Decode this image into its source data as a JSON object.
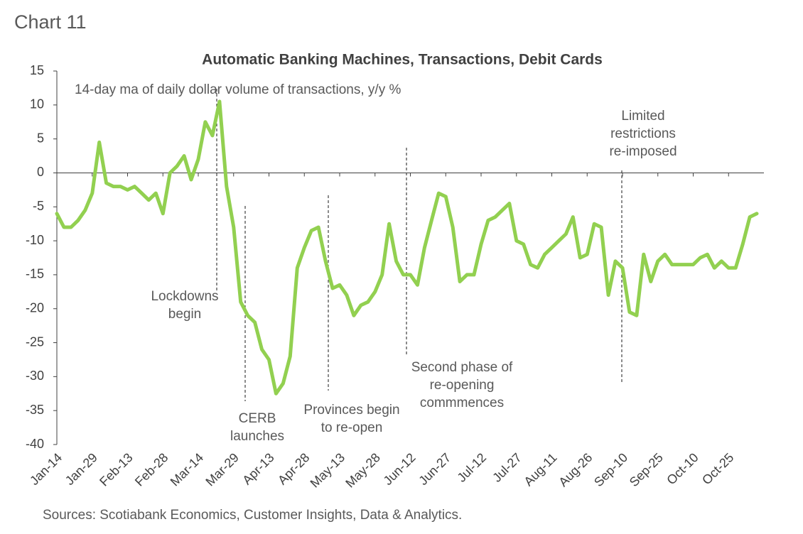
{
  "chart_data": {
    "type": "line",
    "heading": "Chart 11",
    "title": "Automatic Banking Machines, Transactions, Debit Cards",
    "subtitle": "14-day ma of daily dollar volume of transactions, y/y %",
    "source": "Sources: Scotiabank Economics, Customer Insights, Data & Analytics.",
    "categories": [
      "Jan-14",
      null,
      null,
      null,
      null,
      "Jan-29",
      null,
      null,
      null,
      null,
      "Feb-13",
      null,
      null,
      null,
      null,
      "Feb-28",
      null,
      null,
      null,
      null,
      "Mar-14",
      null,
      null,
      null,
      null,
      "Mar-29",
      null,
      null,
      null,
      null,
      "Apr-13",
      null,
      null,
      null,
      null,
      "Apr-28",
      null,
      null,
      null,
      null,
      "May-13",
      null,
      null,
      null,
      null,
      "May-28",
      null,
      null,
      null,
      null,
      "Jun-12",
      null,
      null,
      null,
      null,
      "Jun-27",
      null,
      null,
      null,
      null,
      "Jul-12",
      null,
      null,
      null,
      null,
      "Jul-27",
      null,
      null,
      null,
      null,
      "Aug-11",
      null,
      null,
      null,
      null,
      "Aug-26",
      null,
      null,
      null,
      null,
      "Sep-10",
      null,
      null,
      null,
      null,
      "Sep-25",
      null,
      null,
      null,
      null,
      "Oct-10",
      null,
      null,
      null,
      null,
      "Oct-25",
      null,
      null,
      null,
      null
    ],
    "values": [
      -6,
      -8,
      -8,
      -7,
      -5.5,
      -3,
      4.5,
      -1.5,
      -2,
      -2,
      -2.5,
      -2,
      -3,
      -4,
      -3,
      -6,
      0,
      1,
      2.5,
      -1,
      2,
      7.5,
      5.5,
      10.5,
      -2,
      -8,
      -19,
      -21,
      -22,
      -26,
      -27.5,
      -32.5,
      -31,
      -27,
      -14,
      -11,
      -8.5,
      -8,
      -13,
      -17,
      -16.5,
      -18,
      -21,
      -19.5,
      -19,
      -17.5,
      -15,
      -7.5,
      -13,
      -15,
      -15,
      -16.5,
      -11,
      -7,
      -3,
      -3.5,
      -8,
      -16,
      -15,
      -15,
      -10.5,
      -7,
      -6.5,
      -5.5,
      -4.5,
      -10,
      -10.5,
      -13.5,
      -14,
      -12,
      -11,
      -10,
      -9,
      -6.5,
      -12.5,
      -12,
      -7.5,
      -8,
      -18,
      -13,
      -14,
      -20.5,
      -21,
      -12,
      -16,
      -13,
      -12,
      -13.5,
      -13.5,
      -13.5,
      -13.5,
      -12.5,
      -12,
      -14,
      -13,
      -14,
      -14,
      -10.5,
      -6.5,
      -6
    ],
    "color": "#92d050",
    "ylim": [
      -40,
      15
    ],
    "yticks": [
      15,
      10,
      5,
      0,
      -5,
      -10,
      -15,
      -20,
      -25,
      -30,
      -35,
      -40
    ],
    "annotations": [
      [
        "Lockdowns",
        "begin"
      ],
      [
        "CERB",
        "launches"
      ],
      [
        "Provinces begin",
        "to re-open"
      ],
      [
        "Second phase of",
        "re-opening",
        "commmences"
      ],
      [
        "Limited",
        "restrictions",
        "re-imposed"
      ]
    ]
  }
}
